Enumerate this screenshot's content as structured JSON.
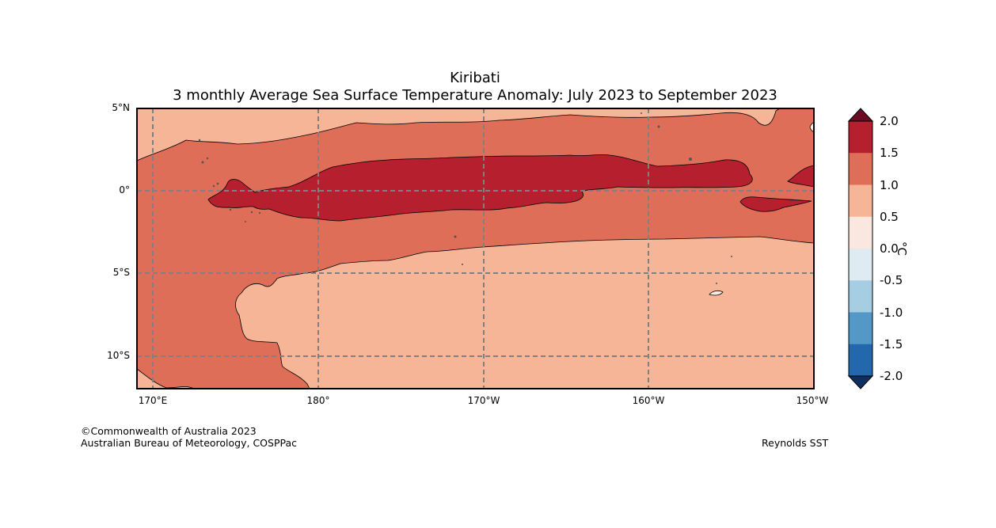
{
  "title": {
    "region": "Kiribati",
    "subtitle": "3 monthly Average Sea Surface Temperature Anomaly: July 2023 to September 2023"
  },
  "map": {
    "lat_labels": [
      "5°N",
      "0°",
      "5°S",
      "10°S"
    ],
    "lon_labels": [
      "170°E",
      "180°",
      "170°W",
      "160°W",
      "150°W"
    ],
    "anomaly_bands": [
      {
        "range": "0.5 to 1.0",
        "color": "#f6b596"
      },
      {
        "range": "1.0 to 1.5",
        "color": "#de6e58"
      },
      {
        "range": "1.5 to 2.0",
        "color": "#b61f2e"
      },
      {
        "range": "0.0 to 0.5",
        "color": "#fae8e0"
      }
    ]
  },
  "colorbar": {
    "unit": "°C",
    "ticks": [
      "2.0",
      "1.5",
      "1.0",
      "0.5",
      "0.0",
      "-0.5",
      "-1.0",
      "-1.5",
      "-2.0"
    ],
    "colors": [
      "#b61f2e",
      "#de6e58",
      "#f6b596",
      "#fae8e0",
      "#deebf2",
      "#a6cee3",
      "#5498c7",
      "#2367ac"
    ],
    "over_color": "#6b0d22",
    "under_color": "#0d3061"
  },
  "footer": {
    "copyright": "©Commonwealth of Australia 2023",
    "agency": "Australian Bureau of Meteorology, COSPPac",
    "source": "Reynolds SST"
  }
}
